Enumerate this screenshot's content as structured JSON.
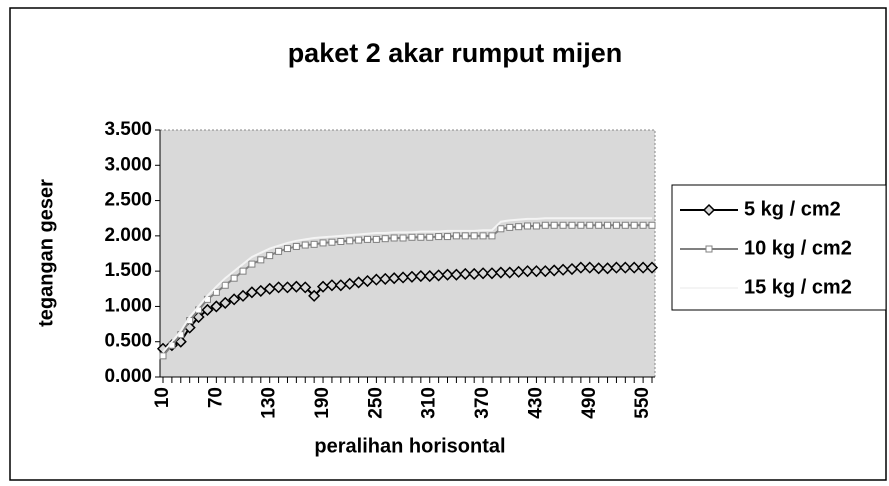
{
  "chart_data": {
    "type": "line",
    "title": "paket 2 akar rumput mijen",
    "x_label": "peralihan horisontal",
    "y_label": "tegangan geser",
    "x": [
      10,
      20,
      30,
      40,
      50,
      60,
      70,
      80,
      90,
      100,
      110,
      120,
      130,
      140,
      150,
      160,
      170,
      180,
      190,
      200,
      210,
      220,
      230,
      240,
      250,
      260,
      270,
      280,
      290,
      300,
      310,
      320,
      330,
      340,
      350,
      360,
      370,
      380,
      390,
      400,
      410,
      420,
      430,
      440,
      450,
      460,
      470,
      480,
      490,
      500,
      510,
      520,
      530,
      540,
      550,
      560
    ],
    "xlim": [
      10,
      560
    ],
    "xticks": [
      10,
      70,
      130,
      190,
      250,
      310,
      370,
      430,
      490,
      550
    ],
    "ylim": [
      0,
      3.5
    ],
    "yticks": [
      {
        "value": 0,
        "label": "0.000"
      },
      {
        "value": 0.5,
        "label": "0.500"
      },
      {
        "value": 1,
        "label": "1.000"
      },
      {
        "value": 1.5,
        "label": "1.500"
      },
      {
        "value": 2,
        "label": "2.000"
      },
      {
        "value": 2.5,
        "label": "2.500"
      },
      {
        "value": 3,
        "label": "3.000"
      },
      {
        "value": 3.5,
        "label": "3.500"
      }
    ],
    "grid": false,
    "legend": "right",
    "series": [
      {
        "name": "5 kg / cm2",
        "color": "#000000",
        "marker": "diamond",
        "values": [
          0.4,
          0.45,
          0.5,
          0.7,
          0.85,
          0.95,
          1.0,
          1.05,
          1.1,
          1.15,
          1.2,
          1.22,
          1.25,
          1.27,
          1.27,
          1.28,
          1.27,
          1.15,
          1.28,
          1.3,
          1.3,
          1.32,
          1.34,
          1.36,
          1.38,
          1.39,
          1.4,
          1.41,
          1.42,
          1.43,
          1.43,
          1.44,
          1.45,
          1.45,
          1.46,
          1.46,
          1.47,
          1.47,
          1.48,
          1.48,
          1.49,
          1.5,
          1.5,
          1.5,
          1.51,
          1.52,
          1.53,
          1.55,
          1.55,
          1.54,
          1.54,
          1.55,
          1.55,
          1.55,
          1.55,
          1.55
        ]
      },
      {
        "name": "10 kg / cm2",
        "color": "#808080",
        "marker": "square",
        "values": [
          0.3,
          0.45,
          0.6,
          0.8,
          0.95,
          1.1,
          1.2,
          1.3,
          1.4,
          1.5,
          1.6,
          1.66,
          1.72,
          1.78,
          1.82,
          1.85,
          1.87,
          1.88,
          1.9,
          1.91,
          1.92,
          1.93,
          1.94,
          1.95,
          1.95,
          1.96,
          1.97,
          1.97,
          1.98,
          1.98,
          1.98,
          1.99,
          1.99,
          2.0,
          2.0,
          2.0,
          2.0,
          2.0,
          2.1,
          2.12,
          2.13,
          2.14,
          2.14,
          2.15,
          2.15,
          2.15,
          2.15,
          2.15,
          2.15,
          2.15,
          2.15,
          2.15,
          2.15,
          2.15,
          2.15,
          2.15
        ]
      },
      {
        "name": "15 kg / cm2",
        "color": "#f4f4f4",
        "marker": "none",
        "values": [
          0.35,
          0.5,
          0.65,
          0.85,
          1.0,
          1.15,
          1.28,
          1.4,
          1.5,
          1.6,
          1.7,
          1.76,
          1.82,
          1.86,
          1.9,
          1.93,
          1.95,
          1.97,
          1.98,
          1.99,
          2.0,
          2.01,
          2.02,
          2.03,
          2.04,
          2.04,
          2.05,
          2.05,
          2.05,
          2.06,
          2.06,
          2.06,
          2.07,
          2.07,
          2.07,
          2.07,
          2.08,
          2.08,
          2.2,
          2.22,
          2.23,
          2.24,
          2.24,
          2.25,
          2.25,
          2.25,
          2.25,
          2.25,
          2.25,
          2.25,
          2.25,
          2.25,
          2.25,
          2.25,
          2.25,
          2.25
        ]
      }
    ]
  }
}
